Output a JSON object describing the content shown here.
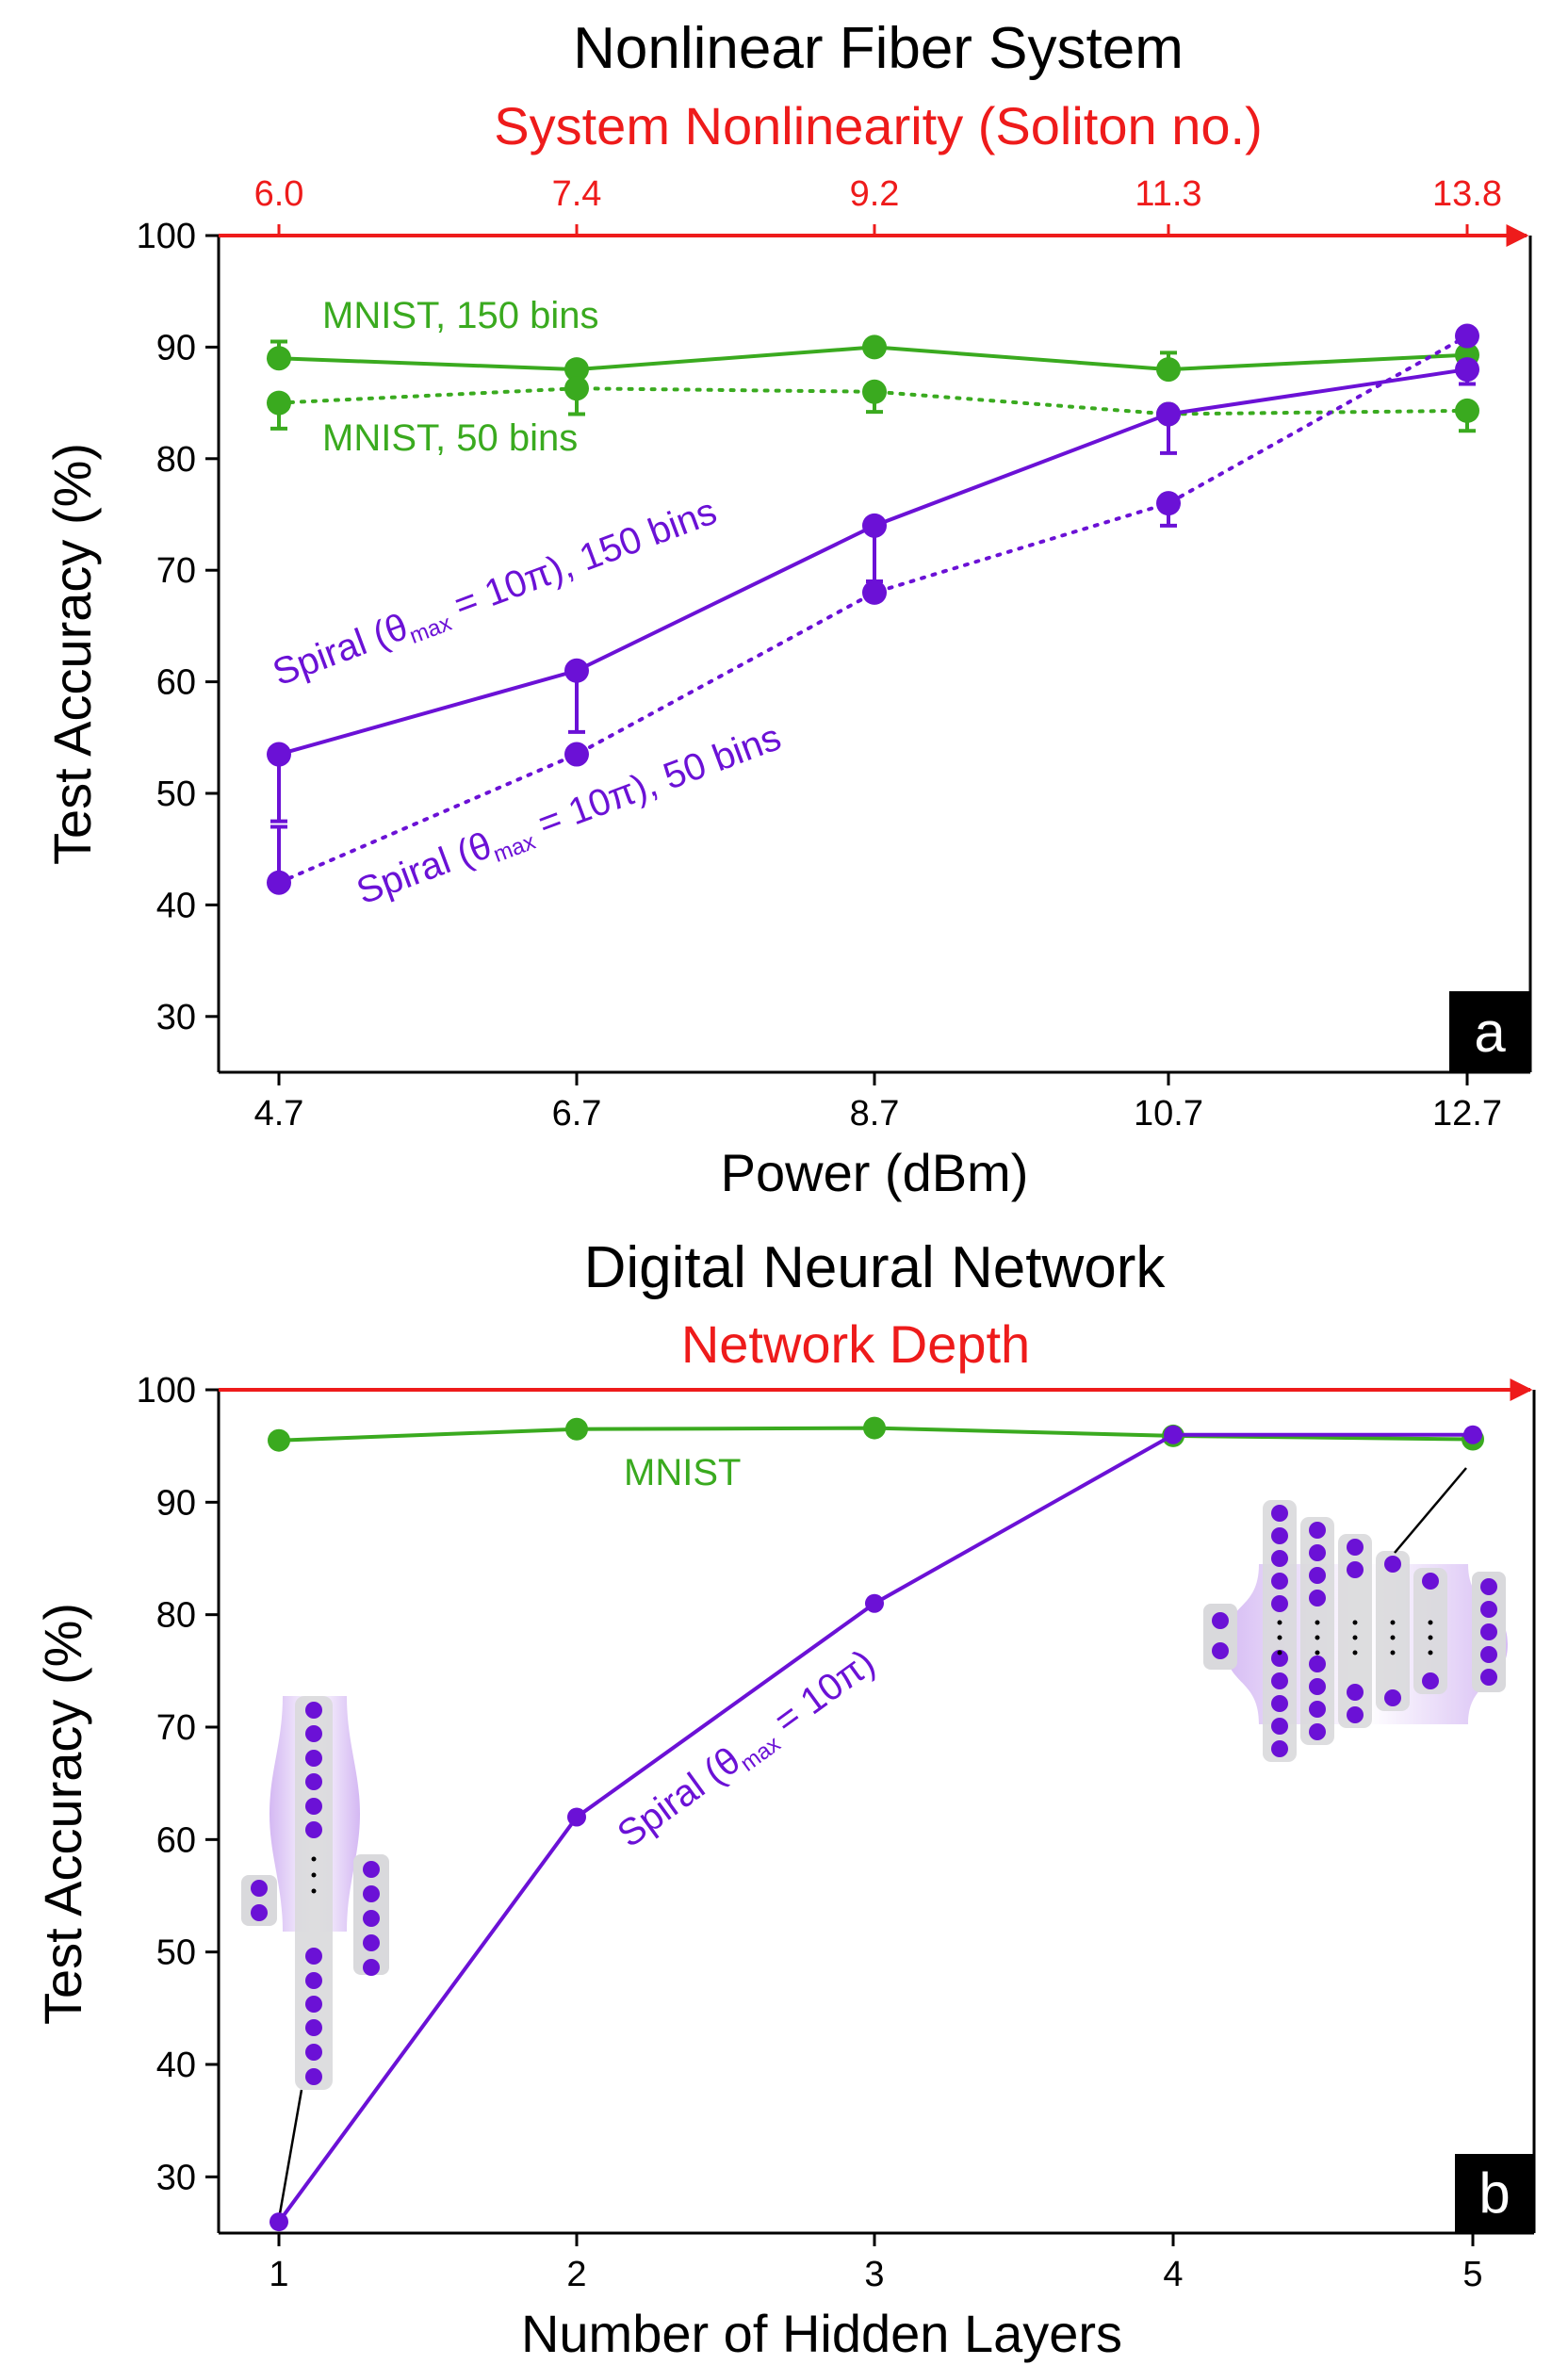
{
  "colors": {
    "green": "#3aaa1f",
    "purple": "#6b11d6",
    "red": "#ee1b1b",
    "black": "#000000"
  },
  "chart_data": [
    {
      "type": "line",
      "panel_label": "a",
      "title": "Nonlinear Fiber System",
      "top_axis_label": "System Nonlinearity (Soliton no.)",
      "top_tick_labels": [
        "6.0",
        "7.4",
        "9.2",
        "11.3",
        "13.8"
      ],
      "xlabel": "Power (dBm)",
      "x_tick_labels": [
        "4.7",
        "6.7",
        "8.7",
        "10.7",
        "12.7"
      ],
      "ylabel": "Test Accuracy (%)",
      "ylim": [
        25,
        100
      ],
      "y_ticks": [
        "30",
        "40",
        "50",
        "60",
        "70",
        "80",
        "90",
        "100"
      ],
      "series": [
        {
          "name": "MNIST, 150 bins",
          "color": "green",
          "style": "solid",
          "values": [
            89,
            88,
            90,
            88,
            89.3
          ],
          "err_low": [
            0,
            0,
            0,
            0,
            0
          ],
          "err_high": [
            1.5,
            0,
            0,
            1.5,
            0
          ]
        },
        {
          "name": "MNIST, 50 bins",
          "color": "green",
          "style": "dotted",
          "values": [
            85,
            86.3,
            86,
            84,
            84.3
          ],
          "err_low": [
            2.3,
            2.3,
            1.8,
            0,
            1.8
          ],
          "err_high": [
            0,
            0,
            0,
            0,
            0
          ]
        },
        {
          "name": "Spiral 150 bins",
          "color": "purple",
          "style": "solid",
          "values": [
            53.5,
            61,
            74,
            84,
            88
          ],
          "err_low": [
            6,
            5.5,
            5,
            3.5,
            1.3
          ],
          "err_high": [
            0,
            0,
            0,
            0,
            0
          ]
        },
        {
          "name": "Spiral 50 bins",
          "color": "purple",
          "style": "dotted",
          "values": [
            42,
            53.5,
            68,
            76,
            91
          ],
          "err_low": [
            0,
            0,
            0,
            2,
            0
          ],
          "err_high": [
            5,
            0,
            0,
            0,
            0
          ]
        }
      ],
      "annotations": {
        "mnist150": "MNIST, 150 bins",
        "mnist50": "MNIST, 50 bins",
        "spiral150_pre": "Spiral (θ",
        "spiral150_sub": "max",
        "spiral150_post": " = 10π), 150 bins",
        "spiral50_pre": "Spiral (θ",
        "spiral50_sub": "max",
        "spiral50_post": " = 10π), 50 bins"
      }
    },
    {
      "type": "line",
      "panel_label": "b",
      "title": "Digital Neural Network",
      "top_axis_label": "Network Depth",
      "xlabel": "Number of Hidden Layers",
      "x_tick_labels": [
        "1",
        "2",
        "3",
        "4",
        "5"
      ],
      "ylabel": "Test Accuracy (%)",
      "ylim": [
        25,
        100
      ],
      "y_ticks": [
        "30",
        "40",
        "50",
        "60",
        "70",
        "80",
        "90",
        "100"
      ],
      "series": [
        {
          "name": "MNIST",
          "color": "green",
          "values": [
            95.5,
            96.5,
            96.6,
            95.9,
            95.6
          ]
        },
        {
          "name": "Spiral",
          "color": "purple",
          "values": [
            26,
            62,
            81,
            96,
            96
          ]
        }
      ],
      "annotations": {
        "mnist": "MNIST",
        "spiral_pre": "Spiral (θ",
        "spiral_sub": "max",
        "spiral_post": " = 10π)"
      }
    }
  ]
}
